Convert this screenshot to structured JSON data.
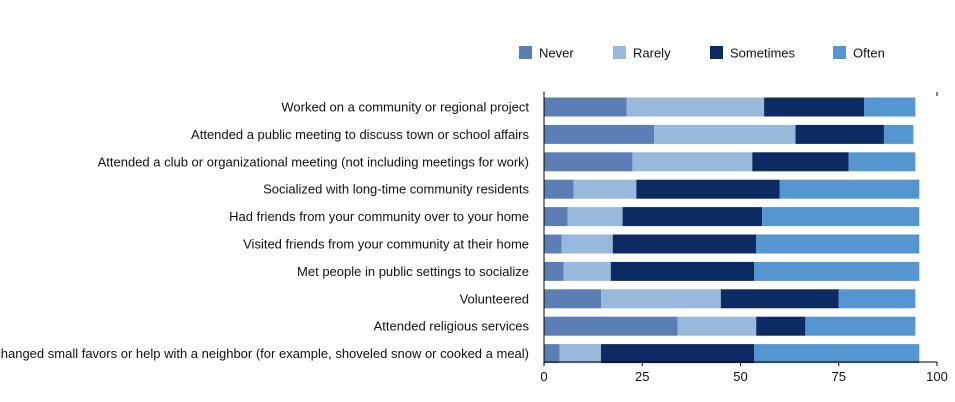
{
  "chart_data": {
    "type": "bar",
    "orientation": "horizontal",
    "stacked": true,
    "categories": [
      "Worked on a community or regional project",
      "Attended a public meeting to discuss town or school affairs",
      "Attended a club or organizational meeting (not including meetings for work)",
      "Socialized with long-time community residents",
      "Had friends from your community over to your home",
      "Visited friends from your community at their home",
      "Met people in public settings to socialize",
      "Volunteered",
      "Attended religious services",
      "Exchanged small favors or help with a neighbor (for example, shoveled snow or cooked a meal)"
    ],
    "series": [
      {
        "name": "Never",
        "color": "#5b7fb4",
        "values": [
          21,
          28,
          22.5,
          7.5,
          6,
          4.5,
          5,
          14.5,
          34,
          4
        ]
      },
      {
        "name": "Rarely",
        "color": "#98b8dc",
        "values": [
          35,
          36,
          30.5,
          16,
          14,
          13,
          12,
          30.5,
          20,
          10.5
        ]
      },
      {
        "name": "Sometimes",
        "color": "#0b2b62",
        "values": [
          25.5,
          22.5,
          24.5,
          36.5,
          35.5,
          36.5,
          36.5,
          30,
          12.5,
          39
        ]
      },
      {
        "name": "Often",
        "color": "#5596d1",
        "values": [
          13,
          7.5,
          17,
          35.5,
          40,
          41.5,
          42,
          19.5,
          28,
          42
        ]
      }
    ],
    "xlim": [
      0,
      100
    ],
    "xticks": [
      "0",
      "25",
      "50",
      "75",
      "100"
    ],
    "title": "",
    "xlabel": "",
    "ylabel": "",
    "legend": {
      "position": "top-right"
    },
    "grid": false
  }
}
